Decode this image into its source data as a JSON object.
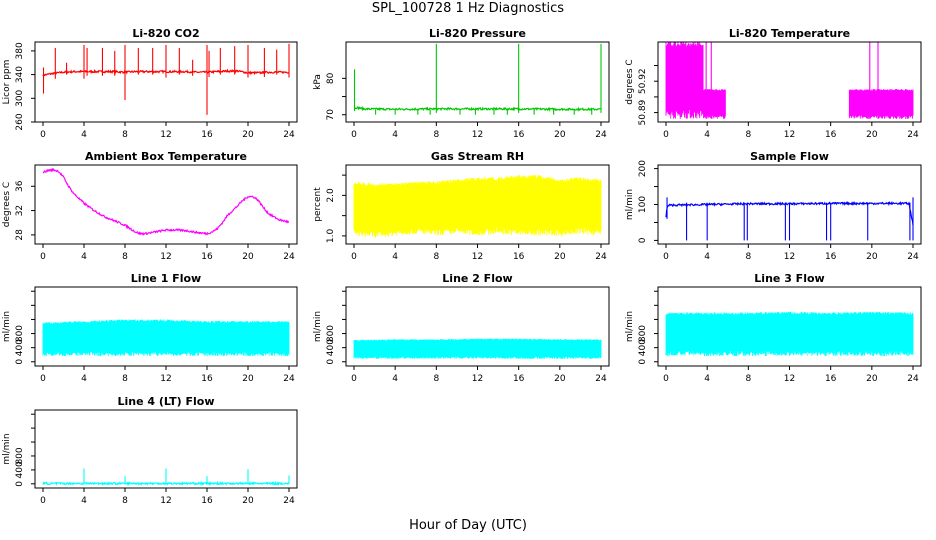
{
  "figure": {
    "title": "SPL_100728  1 Hz Diagnostics",
    "xlabel": "Hour of Day (UTC)"
  },
  "chart_data": [
    {
      "type": "line",
      "title": "Li-820 CO2",
      "ylabel": "Licor ppm",
      "color": "#ff0000",
      "xlim": [
        0,
        24
      ],
      "ylim": [
        260,
        395
      ],
      "yticks": [
        260,
        300,
        340,
        380
      ],
      "xticks": [
        0,
        4,
        8,
        12,
        16,
        20,
        24
      ],
      "series": [
        {
          "x": [
            0,
            1,
            2,
            3,
            4,
            5,
            6,
            7,
            8,
            9,
            10,
            11,
            12,
            13,
            14,
            15,
            16,
            17,
            18,
            19,
            20,
            21,
            22,
            23,
            24
          ],
          "values": [
            339,
            342,
            344,
            345,
            345,
            345,
            345,
            345,
            344,
            345,
            345,
            345,
            345,
            345,
            345,
            344,
            344,
            345,
            346,
            346,
            343,
            343,
            344,
            344,
            344
          ]
        }
      ],
      "spikes": [
        {
          "x": 0.05,
          "values": [
            308,
            352
          ]
        },
        {
          "x": 1.2,
          "values": [
            333,
            385
          ]
        },
        {
          "x": 2.3,
          "values": [
            340,
            360
          ]
        },
        {
          "x": 4.0,
          "values": [
            333,
            390
          ]
        },
        {
          "x": 4.3,
          "values": [
            338,
            385
          ]
        },
        {
          "x": 5.8,
          "values": [
            338,
            385
          ]
        },
        {
          "x": 7.0,
          "values": [
            338,
            380
          ]
        },
        {
          "x": 8.0,
          "values": [
            297,
            390
          ]
        },
        {
          "x": 9.3,
          "values": [
            340,
            385
          ]
        },
        {
          "x": 10.7,
          "values": [
            340,
            385
          ]
        },
        {
          "x": 12.0,
          "values": [
            335,
            390
          ]
        },
        {
          "x": 13.3,
          "values": [
            340,
            385
          ]
        },
        {
          "x": 14.6,
          "values": [
            338,
            365
          ]
        },
        {
          "x": 16.0,
          "values": [
            272,
            390
          ]
        },
        {
          "x": 16.2,
          "values": [
            336,
            380
          ]
        },
        {
          "x": 17.3,
          "values": [
            340,
            385
          ]
        },
        {
          "x": 18.7,
          "values": [
            340,
            388
          ]
        },
        {
          "x": 20.0,
          "values": [
            335,
            390
          ]
        },
        {
          "x": 21.6,
          "values": [
            336,
            385
          ]
        },
        {
          "x": 22.8,
          "values": [
            340,
            382
          ]
        },
        {
          "x": 24.0,
          "values": [
            335,
            392
          ]
        }
      ]
    },
    {
      "type": "line",
      "title": "Li-820 Pressure",
      "ylabel": "kPa",
      "color": "#00c800",
      "xlim": [
        0,
        24
      ],
      "ylim": [
        68,
        90
      ],
      "yticks": [
        70,
        75,
        80
      ],
      "ytick_labels": [
        "70",
        "",
        "80"
      ],
      "xticks": [
        0,
        4,
        8,
        12,
        16,
        20,
        24
      ],
      "series": [
        {
          "x": [
            0,
            0.2,
            1,
            4,
            8,
            12,
            16,
            20,
            24
          ],
          "values": [
            71.5,
            72,
            71.6,
            71.5,
            71.6,
            71.6,
            71.6,
            71.5,
            71.5
          ]
        }
      ],
      "spikes": [
        {
          "x": 0.05,
          "values": [
            71,
            82.5
          ]
        },
        {
          "x": 8.0,
          "values": [
            70.5,
            89.5
          ]
        },
        {
          "x": 16.0,
          "values": [
            70.5,
            89.5
          ]
        },
        {
          "x": 24.0,
          "values": [
            70.5,
            89.5
          ]
        },
        {
          "x": 2.1,
          "values": [
            70.0,
            71.5
          ]
        },
        {
          "x": 4.0,
          "values": [
            70.0,
            71.5
          ]
        },
        {
          "x": 6.2,
          "values": [
            70.0,
            71.5
          ]
        },
        {
          "x": 7.4,
          "values": [
            70.0,
            71.5
          ]
        },
        {
          "x": 10.3,
          "values": [
            70.0,
            71.5
          ]
        },
        {
          "x": 11.8,
          "values": [
            70.0,
            71.5
          ]
        },
        {
          "x": 13.6,
          "values": [
            70.0,
            71.5
          ]
        },
        {
          "x": 14.9,
          "values": [
            70.0,
            71.5
          ]
        },
        {
          "x": 17.5,
          "values": [
            70.0,
            71.5
          ]
        },
        {
          "x": 19.4,
          "values": [
            70.0,
            71.5
          ]
        },
        {
          "x": 21.4,
          "values": [
            70.0,
            71.5
          ]
        },
        {
          "x": 23.1,
          "values": [
            70.0,
            71.5
          ]
        }
      ]
    },
    {
      "type": "area",
      "title": "Li-820 Temperature",
      "ylabel": "degrees C",
      "color": "#ff00ff",
      "xlim": [
        0,
        24
      ],
      "ylim": [
        50.884,
        50.935
      ],
      "yticks": [
        50.89,
        50.9,
        50.91,
        50.92
      ],
      "ytick_labels": [
        "50.89",
        "",
        "50.92"
      ],
      "xticks": [
        0,
        4,
        8,
        12,
        16,
        20,
        24
      ],
      "series": [
        {
          "x": [
            0,
            3.6,
            3.6,
            5.8,
            5.8,
            17.8,
            17.8,
            24
          ],
          "upper": [
            50.935,
            50.935,
            50.905,
            50.905,
            50.886,
            50.886,
            50.905,
            50.905
          ],
          "lower": [
            50.886,
            50.886,
            50.886,
            50.886,
            50.886,
            50.886,
            50.886,
            50.886
          ]
        }
      ],
      "spikes": [
        {
          "x": 3.9,
          "values": [
            50.886,
            50.935
          ]
        },
        {
          "x": 4.4,
          "values": [
            50.886,
            50.935
          ]
        },
        {
          "x": 19.8,
          "values": [
            50.886,
            50.935
          ]
        },
        {
          "x": 20.6,
          "values": [
            50.886,
            50.935
          ]
        },
        {
          "x": 22.4,
          "values": [
            50.886,
            50.905
          ]
        },
        {
          "x": 22.9,
          "values": [
            50.886,
            50.905
          ]
        },
        {
          "x": 23.3,
          "values": [
            50.886,
            50.905
          ]
        }
      ]
    },
    {
      "type": "line",
      "title": "Ambient Box Temperature",
      "ylabel": "degrees C",
      "color": "#ff00ff",
      "xlim": [
        0,
        24
      ],
      "ylim": [
        26.5,
        39.5
      ],
      "yticks": [
        28,
        32,
        36
      ],
      "xticks": [
        0,
        4,
        8,
        12,
        16,
        20,
        24
      ],
      "series": [
        {
          "x": [
            0,
            0.5,
            1,
            1.5,
            2,
            2.5,
            3,
            3.5,
            4,
            5,
            6,
            7,
            8,
            9,
            9.5,
            10,
            11,
            12,
            13,
            14,
            15,
            16,
            16.5,
            17,
            17.5,
            18,
            19,
            19.5,
            20,
            20.5,
            21,
            21.5,
            22,
            23,
            24
          ],
          "values": [
            38.3,
            38.6,
            38.7,
            38.5,
            37.5,
            36,
            34.8,
            34,
            33.2,
            32,
            31,
            30.3,
            29.6,
            28.5,
            28.2,
            28.2,
            28.5,
            28.8,
            28.8,
            28.7,
            28.4,
            28.2,
            28.5,
            29,
            30,
            31.2,
            32.8,
            33.7,
            34.3,
            34.3,
            33.7,
            32.5,
            31.5,
            30.5,
            30.1
          ]
        }
      ]
    },
    {
      "type": "area",
      "title": "Gas Stream RH",
      "ylabel": "percent",
      "color": "#ffff00",
      "xlim": [
        0,
        24
      ],
      "ylim": [
        0.8,
        2.75
      ],
      "yticks": [
        1.0,
        1.5,
        2.0,
        2.5
      ],
      "ytick_labels": [
        "1.0",
        "",
        "2.0",
        ""
      ],
      "xticks": [
        0,
        4,
        8,
        12,
        16,
        20,
        24
      ],
      "series": [
        {
          "x": [
            0,
            2,
            4,
            6,
            8,
            10,
            12,
            14,
            16,
            18,
            20,
            22,
            24
          ],
          "upper": [
            2.35,
            2.3,
            2.3,
            2.35,
            2.35,
            2.4,
            2.45,
            2.45,
            2.5,
            2.5,
            2.4,
            2.45,
            2.4
          ],
          "lower": [
            1.0,
            0.95,
            1.0,
            1.05,
            1.0,
            1.05,
            1.0,
            1.05,
            1.0,
            1.0,
            1.0,
            1.05,
            1.0
          ]
        }
      ]
    },
    {
      "type": "line",
      "title": "Sample Flow",
      "ylabel": "ml/min",
      "color": "#0000ff",
      "xlim": [
        0,
        24
      ],
      "ylim": [
        -10,
        210
      ],
      "yticks": [
        0,
        50,
        100,
        150,
        200
      ],
      "ytick_labels": [
        "0",
        "",
        "100",
        "",
        "200"
      ],
      "xticks": [
        0,
        4,
        8,
        12,
        16,
        20,
        24
      ],
      "series": [
        {
          "x": [
            0,
            0.1,
            0.3,
            4,
            8,
            12,
            16,
            20,
            23.6,
            24
          ],
          "values": [
            65,
            92,
            98,
            100,
            102,
            102,
            103,
            103,
            103,
            45
          ]
        }
      ],
      "spikes": [
        {
          "x": 0.1,
          "values": [
            60,
            120
          ]
        },
        {
          "x": 2.0,
          "values": [
            0,
            105
          ]
        },
        {
          "x": 4.0,
          "values": [
            0,
            105
          ]
        },
        {
          "x": 7.6,
          "values": [
            0,
            105
          ]
        },
        {
          "x": 7.9,
          "values": [
            0,
            105
          ]
        },
        {
          "x": 11.6,
          "values": [
            0,
            105
          ]
        },
        {
          "x": 12.0,
          "values": [
            0,
            105
          ]
        },
        {
          "x": 15.6,
          "values": [
            0,
            105
          ]
        },
        {
          "x": 16.0,
          "values": [
            0,
            105
          ]
        },
        {
          "x": 19.6,
          "values": [
            0,
            105
          ]
        },
        {
          "x": 23.7,
          "values": [
            0,
            105
          ]
        },
        {
          "x": 24.0,
          "values": [
            0,
            120
          ]
        }
      ]
    },
    {
      "type": "area",
      "title": "Line 1 Flow",
      "ylabel": "ml/min",
      "color": "#00ffff",
      "xlim": [
        0,
        24
      ],
      "ylim": [
        -60,
        1060
      ],
      "yticks": [
        0,
        200,
        400,
        600,
        800,
        1000
      ],
      "ytick_labels": [
        "0",
        "400",
        "800"
      ],
      "xticks": [
        0,
        4,
        8,
        12,
        16,
        20,
        24
      ],
      "series": [
        {
          "x": [
            0,
            4,
            8,
            12,
            16,
            20,
            24
          ],
          "upper": [
            560,
            580,
            600,
            600,
            580,
            580,
            580
          ],
          "lower": [
            80,
            80,
            80,
            80,
            80,
            80,
            80
          ]
        }
      ]
    },
    {
      "type": "area",
      "title": "Line 2 Flow",
      "ylabel": "ml/min",
      "color": "#00ffff",
      "xlim": [
        0,
        24
      ],
      "ylim": [
        -60,
        1060
      ],
      "yticks": [
        0,
        200,
        400,
        600,
        800,
        1000
      ],
      "ytick_labels": [
        "0",
        "400",
        "800"
      ],
      "xticks": [
        0,
        4,
        8,
        12,
        16,
        20,
        24
      ],
      "series": [
        {
          "x": [
            0,
            4,
            8,
            12,
            16,
            20,
            24
          ],
          "upper": [
            310,
            320,
            320,
            330,
            330,
            320,
            320
          ],
          "lower": [
            40,
            40,
            40,
            40,
            40,
            40,
            40
          ]
        }
      ]
    },
    {
      "type": "area",
      "title": "Line 3 Flow",
      "ylabel": "ml/min",
      "color": "#00ffff",
      "xlim": [
        0,
        24
      ],
      "ylim": [
        -60,
        1060
      ],
      "yticks": [
        0,
        200,
        400,
        600,
        800,
        1000
      ],
      "ytick_labels": [
        "0",
        "400",
        "800"
      ],
      "xticks": [
        0,
        4,
        8,
        12,
        16,
        20,
        24
      ],
      "series": [
        {
          "x": [
            0,
            4,
            8,
            12,
            16,
            20,
            24
          ],
          "upper": [
            700,
            700,
            700,
            710,
            700,
            710,
            700
          ],
          "lower": [
            80,
            80,
            80,
            80,
            80,
            80,
            80
          ]
        }
      ]
    },
    {
      "type": "line",
      "title": "Line 4 (LT) Flow",
      "ylabel": "ml/min",
      "color": "#00ffff",
      "xlim": [
        0,
        24
      ],
      "ylim": [
        -60,
        1060
      ],
      "yticks": [
        0,
        200,
        400,
        600,
        800,
        1000
      ],
      "ytick_labels": [
        "0",
        "400",
        "800"
      ],
      "xticks": [
        0,
        4,
        8,
        12,
        16,
        20,
        24
      ],
      "series": [
        {
          "x": [
            0,
            24
          ],
          "values": [
            5,
            5
          ]
        }
      ],
      "spikes": [
        {
          "x": 4.0,
          "values": [
            0,
            220
          ]
        },
        {
          "x": 8.0,
          "values": [
            0,
            110
          ]
        },
        {
          "x": 12.0,
          "values": [
            0,
            220
          ]
        },
        {
          "x": 16.0,
          "values": [
            0,
            110
          ]
        },
        {
          "x": 20.0,
          "values": [
            0,
            210
          ]
        },
        {
          "x": 24.0,
          "values": [
            0,
            120
          ]
        }
      ]
    }
  ]
}
